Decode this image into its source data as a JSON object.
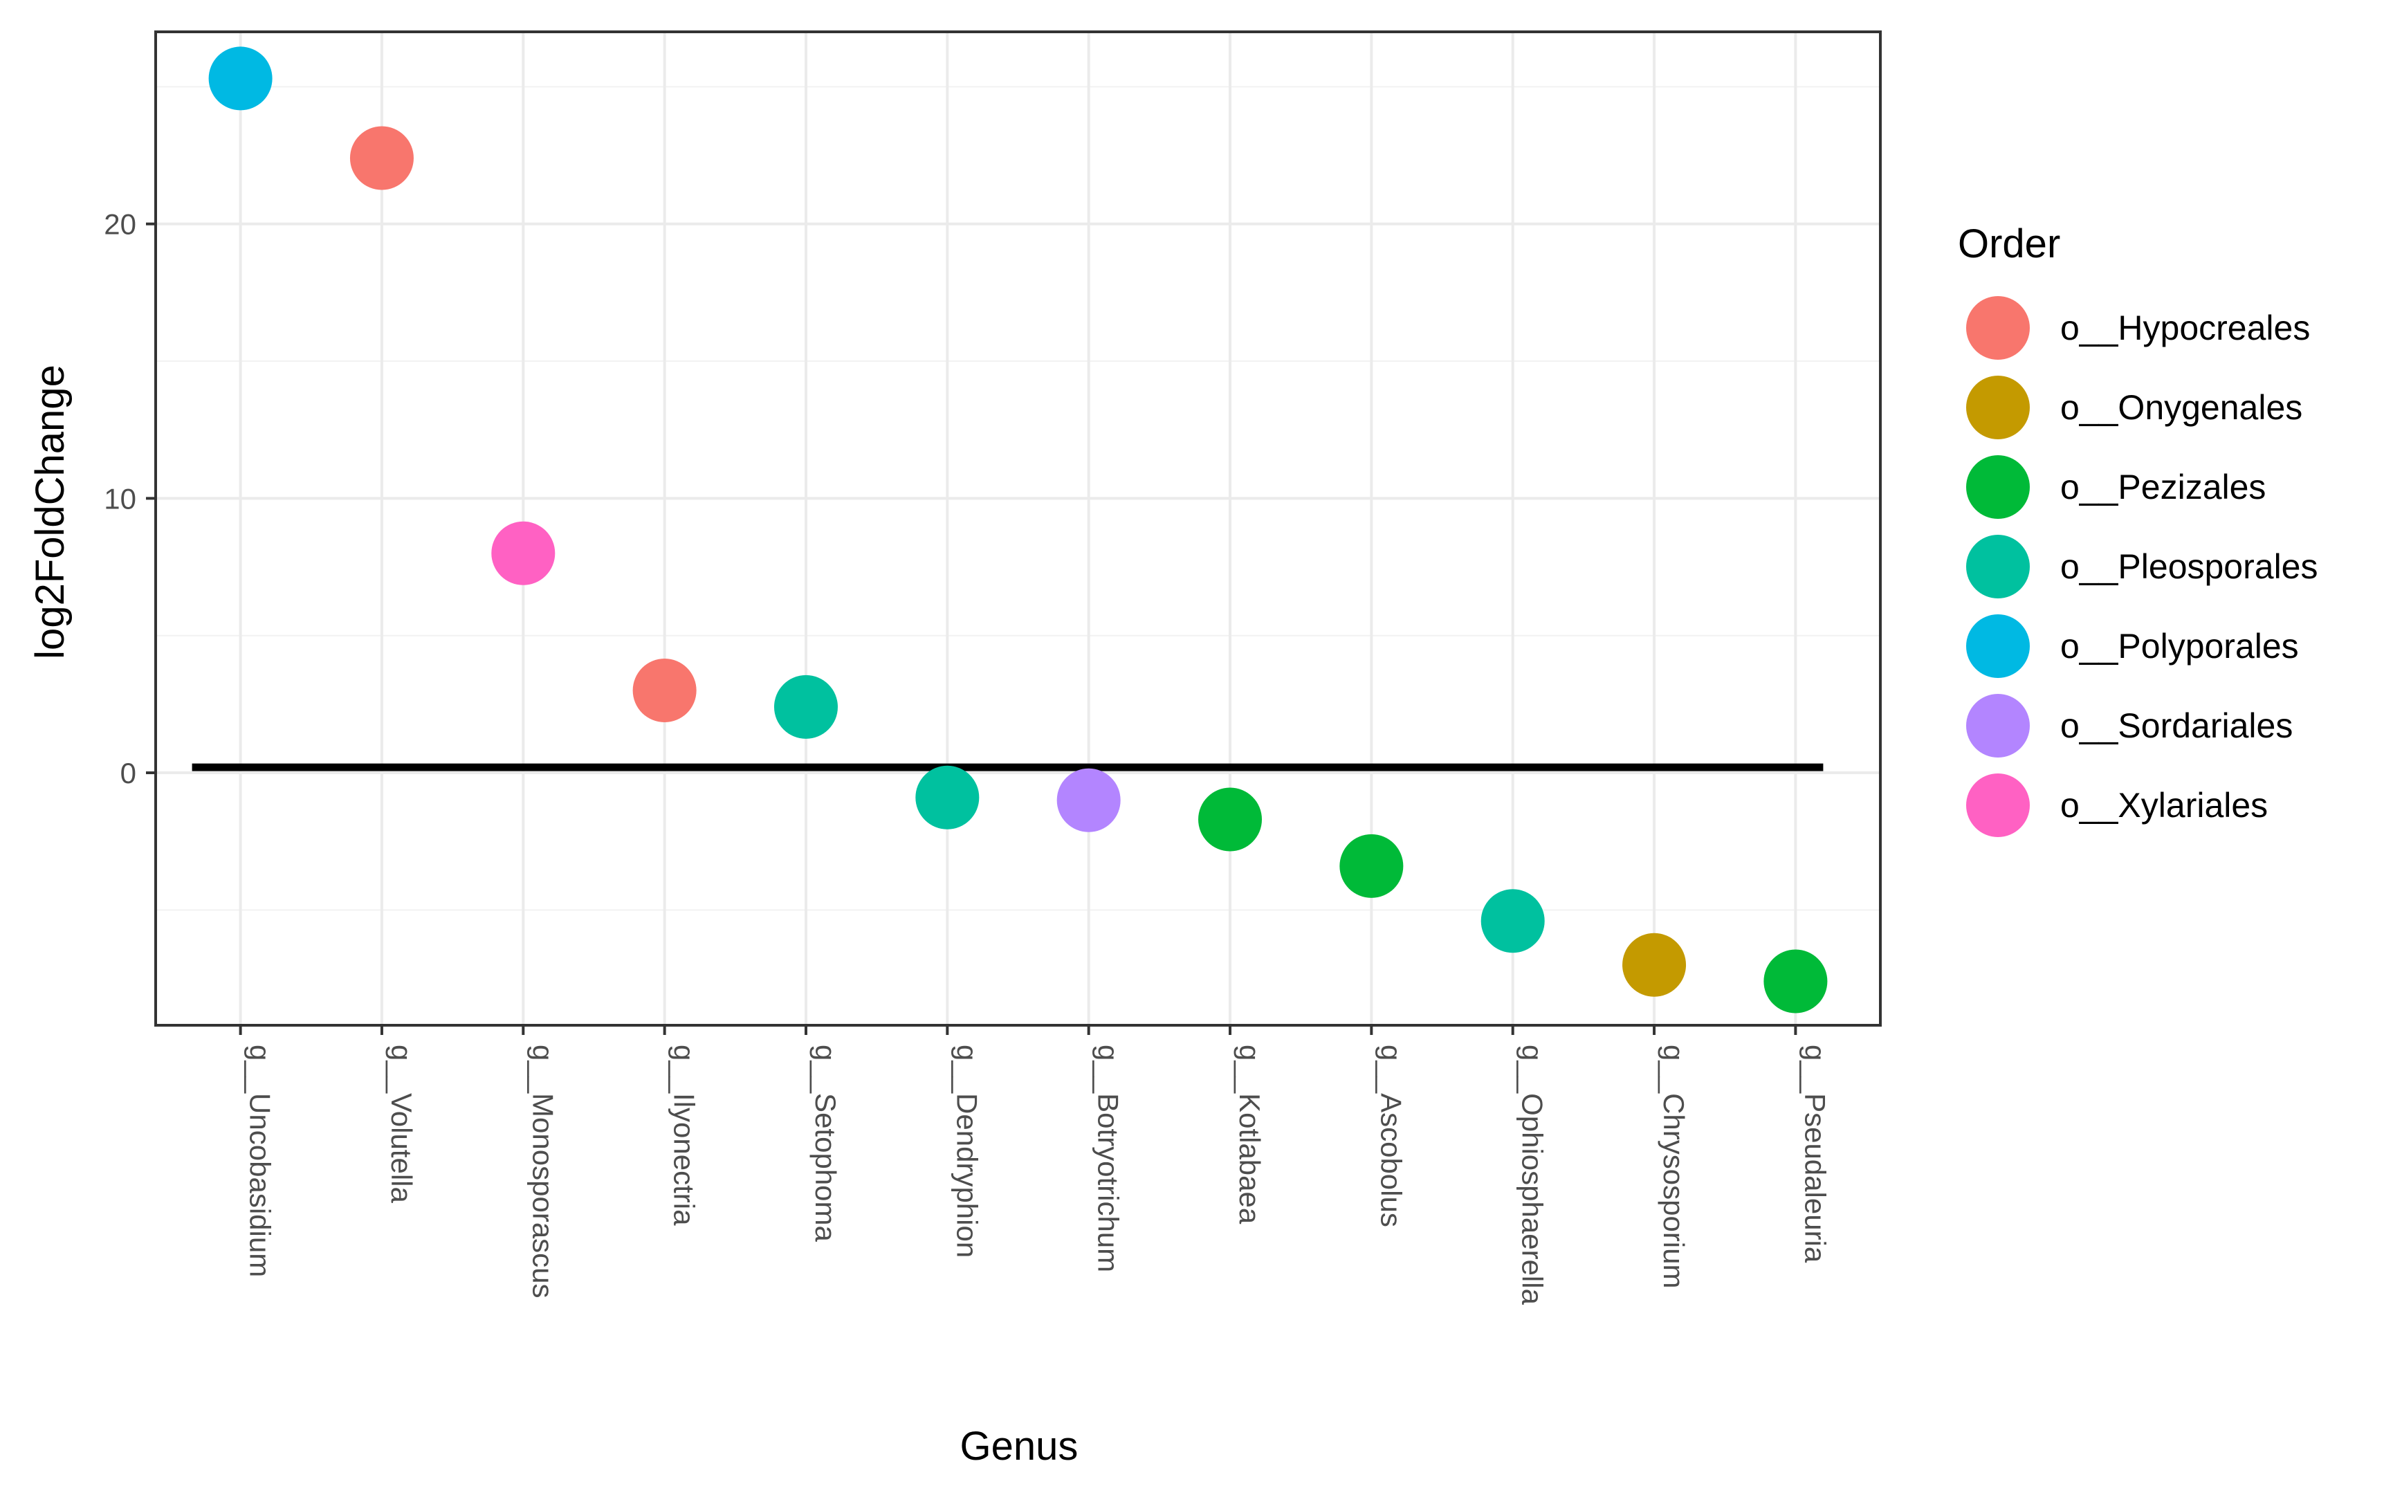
{
  "chart_data": {
    "type": "scatter",
    "xlabel": "Genus",
    "ylabel": "log2FoldChange",
    "categories": [
      "g__Uncobasidium",
      "g__Volutella",
      "g__Monosporascus",
      "g__Ilyonectria",
      "g__Setophoma",
      "g__Dendryphion",
      "g__Botryotrichum",
      "g__Kotlabaea",
      "g__Ascobolus",
      "g__Ophiosphaerella",
      "g__Chrysosporium",
      "g__Pseudaleuria"
    ],
    "values": [
      25.3,
      22.4,
      8.0,
      3.0,
      2.4,
      -0.9,
      -1.0,
      -1.7,
      -3.4,
      -5.4,
      -7.0,
      -7.6
    ],
    "orders": [
      "o__Polyporales",
      "o__Hypocreales",
      "o__Xylariales",
      "o__Hypocreales",
      "o__Pleosporales",
      "o__Pleosporales",
      "o__Sordariales",
      "o__Pezizales",
      "o__Pezizales",
      "o__Pleosporales",
      "o__Onygenales",
      "o__Pezizales"
    ],
    "ylim": [
      -9.2,
      27
    ],
    "yticks": [
      0,
      10,
      20
    ],
    "hline": 0.2,
    "grid": true,
    "legend": {
      "title": "Order",
      "position": "right",
      "entries": [
        {
          "label": "o__Hypocreales",
          "color": "#F8766D"
        },
        {
          "label": "o__Onygenales",
          "color": "#C49A00"
        },
        {
          "label": "o__Pezizales",
          "color": "#00BA38"
        },
        {
          "label": "o__Pleosporales",
          "color": "#00C19F"
        },
        {
          "label": "o__Polyporales",
          "color": "#00B9E3"
        },
        {
          "label": "o__Sordariales",
          "color": "#B385FF"
        },
        {
          "label": "o__Xylariales",
          "color": "#FF61C3"
        }
      ]
    }
  }
}
